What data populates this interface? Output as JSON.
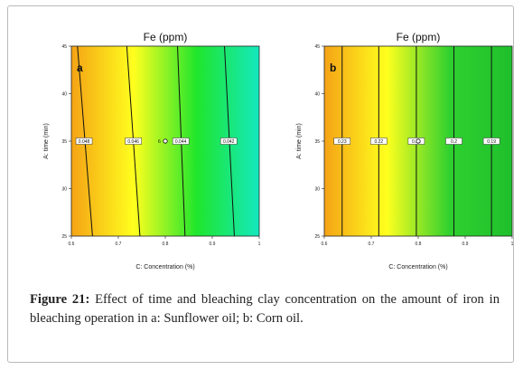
{
  "chart_data": [
    {
      "type": "contour",
      "panel_label": "a",
      "title": "Fe (ppm)",
      "xlabel": "C: Concentration (%)",
      "ylabel": "A: time (min)",
      "xlim": [
        0.6,
        1.0
      ],
      "ylim": [
        25,
        45
      ],
      "x_ticks": [
        "0.6",
        "0.7",
        "0.8",
        "0.9",
        "1"
      ],
      "y_ticks": [
        "25",
        "30",
        "35",
        "40",
        "45"
      ],
      "color_scale": [
        "#f5a315",
        "#ffff1e",
        "#1fe62c",
        "#14e8be"
      ],
      "contours": [
        {
          "label": "0.048",
          "value": 0.048,
          "x_at_ymin": 0.645,
          "x_at_ymax": 0.613,
          "x_at_label": 0.627
        },
        {
          "label": "0.046",
          "value": 0.046,
          "x_at_ymin": 0.746,
          "x_at_ymax": 0.718,
          "x_at_label": 0.732
        },
        {
          "label": "0.044",
          "value": 0.044,
          "x_at_ymin": 0.842,
          "x_at_ymax": 0.826,
          "x_at_label": 0.833
        },
        {
          "label": "0.042",
          "value": 0.042,
          "x_at_ymin": 0.947,
          "x_at_ymax": 0.926,
          "x_at_label": 0.935
        }
      ],
      "design_point": {
        "x": 0.8,
        "y": 35,
        "label": "6"
      }
    },
    {
      "type": "contour",
      "panel_label": "b",
      "title": "Fe (ppm)",
      "xlabel": "C: Concentration (%)",
      "ylabel": "A: time (min)",
      "xlim": [
        0.6,
        1.0
      ],
      "ylim": [
        25,
        45
      ],
      "x_ticks": [
        "0.6",
        "0.7",
        "0.8",
        "0.9",
        "1"
      ],
      "y_ticks": [
        "25",
        "30",
        "35",
        "40",
        "45"
      ],
      "color_scale": [
        "#f5a315",
        "#ffff1e",
        "#2fd12f",
        "#1fbf2c"
      ],
      "contours": [
        {
          "label": "0.23",
          "value": 0.23,
          "x_at_ymin": 0.638,
          "x_at_ymax": 0.638,
          "x_at_label": 0.638
        },
        {
          "label": "0.22",
          "value": 0.22,
          "x_at_ymin": 0.716,
          "x_at_ymax": 0.716,
          "x_at_label": 0.716
        },
        {
          "label": "0.21",
          "value": 0.21,
          "x_at_ymin": 0.796,
          "x_at_ymax": 0.796,
          "x_at_label": 0.796
        },
        {
          "label": "0.2",
          "value": 0.2,
          "x_at_ymin": 0.876,
          "x_at_ymax": 0.876,
          "x_at_label": 0.876
        },
        {
          "label": "0.19",
          "value": 0.19,
          "x_at_ymin": 0.956,
          "x_at_ymax": 0.956,
          "x_at_label": 0.956
        }
      ],
      "design_point": {
        "x": 0.8,
        "y": 35,
        "label": ""
      }
    }
  ],
  "caption": {
    "lead": "Figure 21:",
    "text": " Effect of time and bleaching clay concentration on the amount of iron in bleaching operation in a: Sunflower oil; b: Corn oil."
  }
}
